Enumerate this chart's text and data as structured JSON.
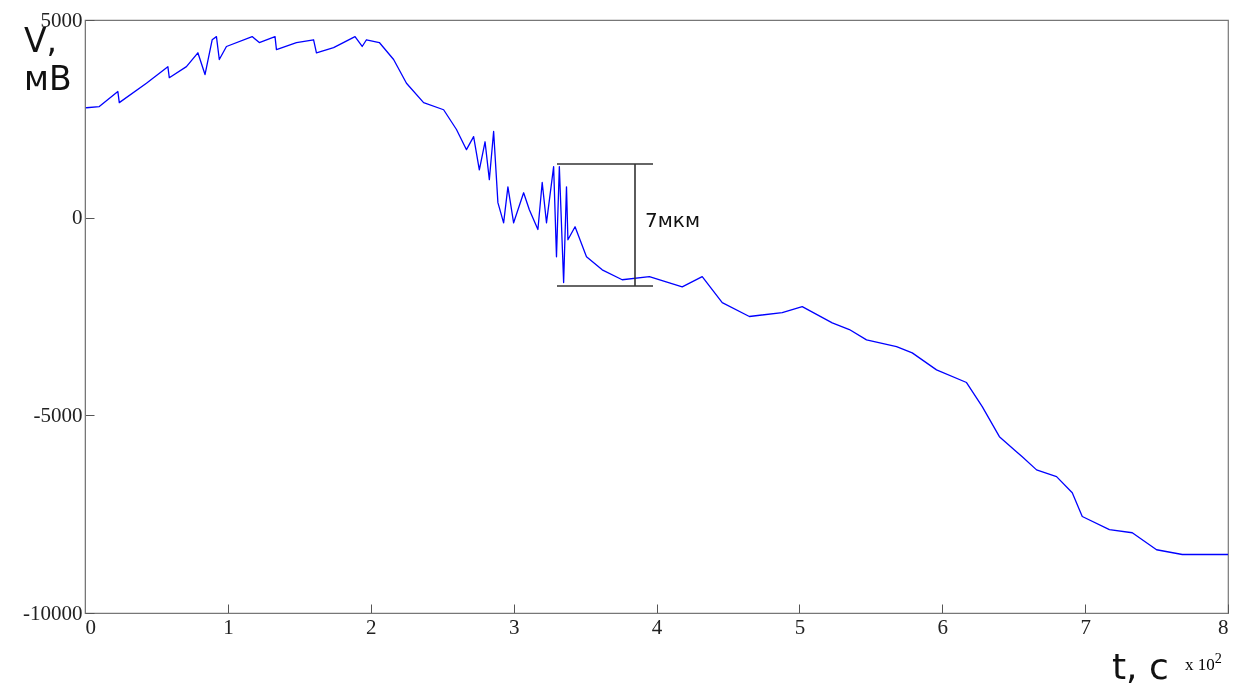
{
  "chart_data": {
    "type": "line",
    "xlabel": "t, с",
    "ylabel": "V, мВ",
    "x": [
      0.01,
      0.1,
      0.23,
      0.24,
      0.43,
      0.58,
      0.59,
      0.71,
      0.79,
      0.84,
      0.89,
      0.92,
      0.94,
      0.99,
      1.17,
      1.22,
      1.33,
      1.34,
      1.48,
      1.6,
      1.62,
      1.74,
      1.89,
      1.94,
      1.97,
      2.06,
      2.16,
      2.25,
      2.37,
      2.51,
      2.6,
      2.67,
      2.72,
      2.76,
      2.8,
      2.83,
      2.86,
      2.89,
      2.93,
      2.96,
      3.0,
      3.07,
      3.11,
      3.17,
      3.2,
      3.23,
      3.28,
      3.3,
      3.32,
      3.35,
      3.37,
      3.38,
      3.43,
      3.51,
      3.62,
      3.76,
      3.95,
      4.18,
      4.32,
      4.46,
      4.65,
      4.88,
      5.02,
      5.23,
      5.35,
      5.47,
      5.68,
      5.79,
      5.96,
      6.17,
      6.28,
      6.4,
      6.56,
      6.66,
      6.8,
      6.91,
      6.98,
      7.17,
      7.33,
      7.5,
      7.68,
      8.0
    ],
    "series": [
      {
        "color": "#0000ff",
        "values": [
          2780,
          2810,
          3190,
          2910,
          3400,
          3820,
          3540,
          3820,
          4170,
          3620,
          4500,
          4580,
          4000,
          4330,
          4580,
          4430,
          4580,
          4250,
          4430,
          4500,
          4170,
          4300,
          4580,
          4330,
          4500,
          4430,
          4000,
          3400,
          2910,
          2730,
          2230,
          1720,
          2050,
          1210,
          1920,
          960,
          2180,
          380,
          -130,
          780,
          -130,
          630,
          200,
          -300,
          890,
          -130,
          1290,
          -990,
          1290,
          -1640,
          780,
          -560,
          -230,
          -990,
          -1320,
          -1570,
          -1490,
          -1750,
          -1490,
          -2150,
          -2500,
          -2400,
          -2250,
          -2660,
          -2830,
          -3090,
          -3260,
          -3420,
          -3850,
          -4170,
          -4780,
          -5540,
          -6050,
          -6380,
          -6550,
          -6960,
          -7560,
          -7890,
          -7970,
          -8400,
          -8520,
          -8520
        ]
      }
    ],
    "xlim": [
      0,
      8
    ],
    "xticks": [
      0,
      1,
      2,
      3,
      4,
      5,
      6,
      7,
      8
    ],
    "ylim": [
      -10000,
      5000
    ],
    "yticks": [
      -10000,
      -5000,
      0,
      5000
    ],
    "grid": false,
    "marker": "none",
    "line_style": "solid",
    "annotations": [
      "7мкм",
      "x 10$^{2}$"
    ]
  }
}
